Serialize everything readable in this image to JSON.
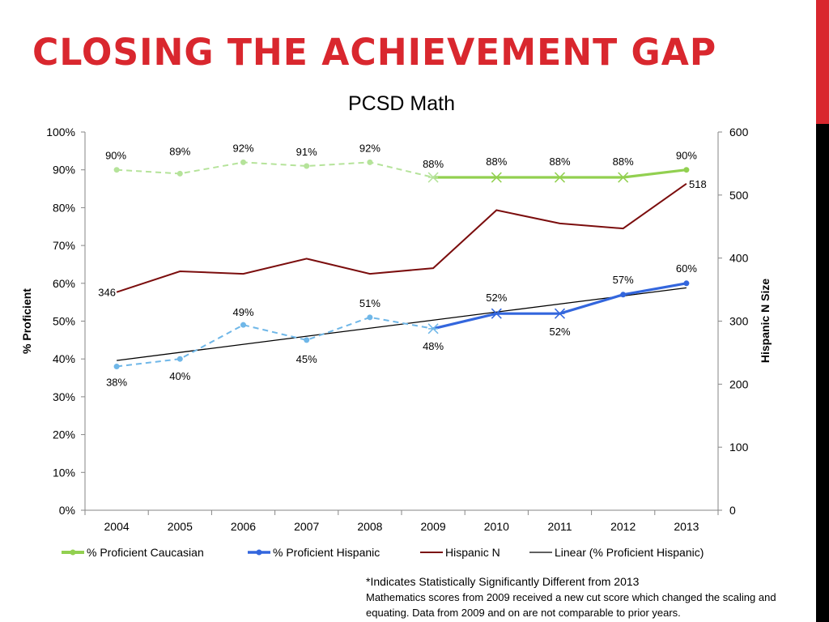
{
  "slide": {
    "title": "CLOSING THE ACHIEVEMENT GAP",
    "footnote_line1": "*Indicates Statistically Significantly Different from 2013",
    "footnote_line2": "Mathematics scores from 2009 received a new cut score which changed the scaling and equating. Data from 2009 and on are not comparable to prior years."
  },
  "colors": {
    "title": "#d9272e",
    "caucasian": "#92d050",
    "caucasian_pre2009": "#b5e39a",
    "hispanic": "#3366dd",
    "hispanic_pre2009": "#6fb7e8",
    "hispanic_n": "#7b0d0d",
    "linear": "#000000"
  },
  "chart_data": {
    "type": "line",
    "title": "PCSD Math",
    "xlabel": "",
    "ylabel": "% Proficient",
    "y2label": "Hispanic N Size",
    "categories": [
      "2004",
      "2005",
      "2006",
      "2007",
      "2008",
      "2009",
      "2010",
      "2011",
      "2012",
      "2013"
    ],
    "ylim": [
      0,
      100
    ],
    "y_ticks": [
      "0%",
      "10%",
      "20%",
      "30%",
      "40%",
      "50%",
      "60%",
      "70%",
      "80%",
      "90%",
      "100%"
    ],
    "y2lim": [
      0,
      600
    ],
    "y2_ticks": [
      "0",
      "100",
      "200",
      "300",
      "400",
      "500",
      "600"
    ],
    "grid": false,
    "legend_position": "bottom",
    "series": [
      {
        "name": "% Proficient Caucasian",
        "axis": "left",
        "values": [
          90,
          89,
          92,
          91,
          92,
          88,
          88,
          88,
          88,
          90
        ],
        "labels": [
          "90%",
          "89%",
          "92%",
          "91%",
          "92%",
          "88%",
          "88%",
          "88%",
          "88%",
          "90%"
        ],
        "dashed_through": "2009",
        "significant": [
          "2009",
          "2010",
          "2011",
          "2012"
        ]
      },
      {
        "name": "% Proficient Hispanic",
        "axis": "left",
        "values": [
          38,
          40,
          49,
          45,
          51,
          48,
          52,
          52,
          57,
          60
        ],
        "labels": [
          "38%",
          "40%",
          "49%",
          "45%",
          "51%",
          "48%",
          "52%",
          "52%",
          "57%",
          "60%"
        ],
        "dashed_through": "2009",
        "significant": [
          "2009",
          "2010",
          "2011"
        ]
      },
      {
        "name": "Hispanic N",
        "axis": "right",
        "values": [
          346,
          379,
          375,
          399,
          375,
          384,
          476,
          455,
          447,
          518
        ],
        "labels": [
          "346",
          "",
          "",
          "",
          "",
          "",
          "",
          "",
          "",
          "518"
        ]
      },
      {
        "name": "Linear (% Proficient Hispanic)",
        "axis": "left",
        "values": [
          39.6,
          41.7,
          43.9,
          46.0,
          48.1,
          50.3,
          52.4,
          54.5,
          56.7,
          58.8
        ]
      }
    ]
  }
}
